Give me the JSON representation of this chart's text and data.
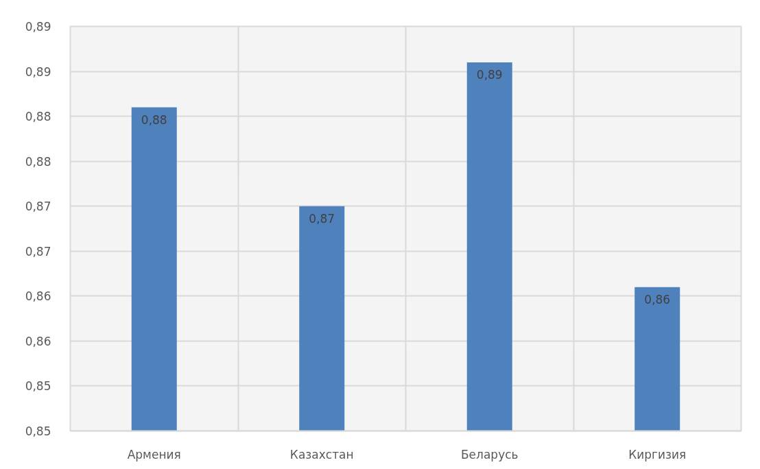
{
  "chart_data": {
    "type": "bar",
    "categories": [
      "Армения",
      "Казахстан",
      "Беларусь",
      "Киргизия"
    ],
    "values": [
      0.881,
      0.87,
      0.886,
      0.861
    ],
    "value_labels": [
      "0,88",
      "0,87",
      "0,89",
      "0,86"
    ],
    "color": "#4f81bd",
    "ylim": [
      0.845,
      0.89
    ],
    "yticks": [
      {
        "value": 0.845,
        "label": "0,85"
      },
      {
        "value": 0.85,
        "label": "0,85"
      },
      {
        "value": 0.855,
        "label": "0,86"
      },
      {
        "value": 0.86,
        "label": "0,86"
      },
      {
        "value": 0.865,
        "label": "0,87"
      },
      {
        "value": 0.87,
        "label": "0,87"
      },
      {
        "value": 0.875,
        "label": "0,88"
      },
      {
        "value": 0.88,
        "label": "0,88"
      },
      {
        "value": 0.885,
        "label": "0,89"
      },
      {
        "value": 0.89,
        "label": "0,89"
      }
    ],
    "grid": true
  }
}
